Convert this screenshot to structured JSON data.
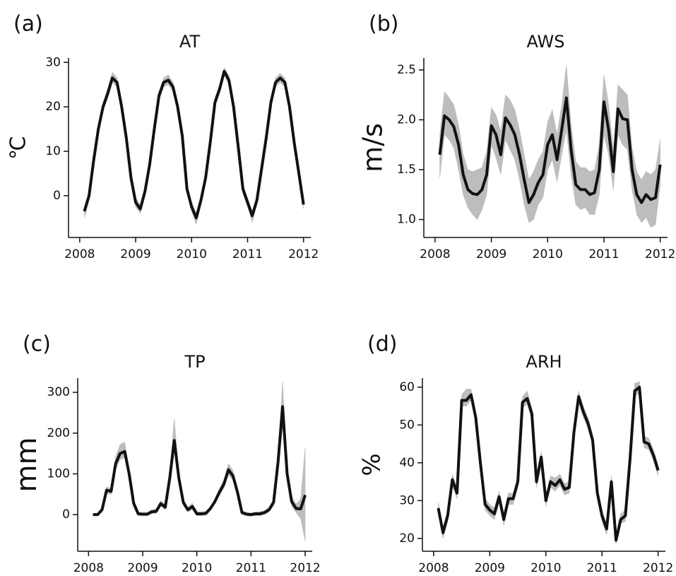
{
  "chart_data": [
    {
      "type": "line",
      "panel_label": "(a)",
      "title": "AT",
      "y_label": "℃",
      "x": [
        2008.083,
        2008.167,
        2008.25,
        2008.333,
        2008.417,
        2008.5,
        2008.583,
        2008.667,
        2008.75,
        2008.833,
        2008.917,
        2009,
        2009.083,
        2009.167,
        2009.25,
        2009.333,
        2009.417,
        2009.5,
        2009.583,
        2009.667,
        2009.75,
        2009.833,
        2009.917,
        2010,
        2010.083,
        2010.167,
        2010.25,
        2010.333,
        2010.417,
        2010.5,
        2010.583,
        2010.667,
        2010.75,
        2010.833,
        2010.917,
        2011,
        2011.083,
        2011.167,
        2011.25,
        2011.333,
        2011.417,
        2011.5,
        2011.583,
        2011.667,
        2011.75,
        2011.833,
        2011.917,
        2012
      ],
      "xlim": [
        2007.8,
        2012.13
      ],
      "xticks": [
        2008,
        2009,
        2010,
        2011,
        2012
      ],
      "ylim": [
        -9.4,
        31
      ],
      "yticks": [
        0,
        10,
        20,
        30
      ],
      "band_color": "#bdbdbd",
      "series": [
        {
          "color": "#111111",
          "values": [
            -3.5,
            0,
            8,
            15,
            20,
            23,
            26.5,
            25.5,
            20,
            13,
            4,
            -1.5,
            -3,
            1,
            7,
            15,
            22.5,
            25.5,
            26,
            24.5,
            20,
            13.5,
            1.5,
            -2.5,
            -5,
            -1,
            4,
            12,
            21,
            24,
            28,
            26,
            20,
            11,
            1.5,
            -1.5,
            -4.5,
            -1,
            6,
            13,
            21,
            25.5,
            26.5,
            25.5,
            20,
            12,
            5,
            -2
          ],
          "lower": [
            -5,
            -1,
            7,
            14,
            19,
            22,
            25.5,
            24.5,
            19,
            12,
            3,
            -2.5,
            -4,
            0,
            6,
            14,
            21.5,
            24.5,
            25,
            23.5,
            19,
            12.5,
            0.5,
            -3.5,
            -6.5,
            -2,
            3,
            11,
            20,
            23,
            27,
            25,
            19,
            10,
            0.5,
            -2.5,
            -6,
            -2,
            5,
            12,
            20,
            24.5,
            25.5,
            24.5,
            19,
            11,
            4,
            -3
          ],
          "upper": [
            -2.5,
            1,
            9,
            16,
            21,
            24,
            27.8,
            26.5,
            21,
            14,
            5,
            -0.5,
            -2,
            2,
            8,
            16,
            23.5,
            26.5,
            27.2,
            25.5,
            21,
            14.5,
            2.5,
            -1.5,
            -3.8,
            0,
            5,
            13,
            22,
            25,
            28.8,
            27,
            21,
            12,
            2.5,
            -0.5,
            -3.5,
            0,
            7,
            14,
            22,
            26.5,
            27.5,
            26.5,
            21,
            13,
            6,
            -1
          ]
        }
      ]
    },
    {
      "type": "line",
      "panel_label": "(b)",
      "title": "AWS",
      "y_label": "m/s",
      "x": [
        2008.083,
        2008.167,
        2008.25,
        2008.333,
        2008.417,
        2008.5,
        2008.583,
        2008.667,
        2008.75,
        2008.833,
        2008.917,
        2009,
        2009.083,
        2009.167,
        2009.25,
        2009.333,
        2009.417,
        2009.5,
        2009.583,
        2009.667,
        2009.75,
        2009.833,
        2009.917,
        2010,
        2010.083,
        2010.167,
        2010.25,
        2010.333,
        2010.417,
        2010.5,
        2010.583,
        2010.667,
        2010.75,
        2010.833,
        2010.917,
        2011,
        2011.083,
        2011.167,
        2011.25,
        2011.333,
        2011.417,
        2011.5,
        2011.583,
        2011.667,
        2011.75,
        2011.833,
        2011.917,
        2012
      ],
      "xlim": [
        2007.8,
        2012.13
      ],
      "xticks": [
        2008,
        2009,
        2010,
        2011,
        2012
      ],
      "ylim": [
        0.82,
        2.62
      ],
      "yticks": [
        {
          "value": 1,
          "label": "1.0"
        },
        1.5,
        {
          "value": 2,
          "label": "2.0"
        },
        2.5
      ],
      "band_color": "#bdbdbd",
      "series": [
        {
          "color": "#111111",
          "values": [
            1.65,
            2.04,
            2.0,
            1.93,
            1.75,
            1.45,
            1.3,
            1.26,
            1.25,
            1.3,
            1.45,
            1.94,
            1.85,
            1.65,
            2.02,
            1.95,
            1.85,
            1.65,
            1.4,
            1.17,
            1.25,
            1.37,
            1.45,
            1.75,
            1.85,
            1.6,
            1.9,
            2.22,
            1.7,
            1.35,
            1.3,
            1.3,
            1.25,
            1.27,
            1.5,
            2.18,
            1.9,
            1.48,
            2.11,
            2.01,
            2.0,
            1.5,
            1.25,
            1.17,
            1.25,
            1.2,
            1.22,
            1.55
          ],
          "lower": [
            1.42,
            1.85,
            1.8,
            1.72,
            1.5,
            1.25,
            1.12,
            1.05,
            1.0,
            1.1,
            1.25,
            1.75,
            1.62,
            1.45,
            1.8,
            1.7,
            1.6,
            1.4,
            1.15,
            0.97,
            1.0,
            1.15,
            1.22,
            1.5,
            1.6,
            1.38,
            1.65,
            1.9,
            1.45,
            1.15,
            1.1,
            1.12,
            1.05,
            1.05,
            1.25,
            1.85,
            1.65,
            1.3,
            1.85,
            1.75,
            1.7,
            1.3,
            1.05,
            0.97,
            1.02,
            0.92,
            0.95,
            1.35
          ],
          "upper": [
            1.85,
            2.28,
            2.22,
            2.15,
            1.95,
            1.65,
            1.5,
            1.48,
            1.5,
            1.52,
            1.68,
            2.12,
            2.05,
            1.88,
            2.25,
            2.2,
            2.1,
            1.9,
            1.65,
            1.4,
            1.48,
            1.6,
            1.68,
            1.98,
            2.1,
            1.85,
            2.15,
            2.55,
            1.95,
            1.58,
            1.52,
            1.52,
            1.48,
            1.5,
            1.75,
            2.45,
            2.15,
            1.7,
            2.35,
            2.3,
            2.25,
            1.72,
            1.48,
            1.4,
            1.48,
            1.45,
            1.5,
            1.8
          ]
        }
      ]
    },
    {
      "type": "line",
      "panel_label": "(c)",
      "title": "TP",
      "y_label": "mm",
      "x": [
        2008.083,
        2008.167,
        2008.25,
        2008.333,
        2008.417,
        2008.5,
        2008.583,
        2008.667,
        2008.75,
        2008.833,
        2008.917,
        2009,
        2009.083,
        2009.167,
        2009.25,
        2009.333,
        2009.417,
        2009.5,
        2009.583,
        2009.667,
        2009.75,
        2009.833,
        2009.917,
        2010,
        2010.083,
        2010.167,
        2010.25,
        2010.333,
        2010.417,
        2010.5,
        2010.583,
        2010.667,
        2010.75,
        2010.833,
        2010.917,
        2011,
        2011.083,
        2011.167,
        2011.25,
        2011.333,
        2011.417,
        2011.5,
        2011.583,
        2011.667,
        2011.75,
        2011.833,
        2011.917,
        2012
      ],
      "xlim": [
        2007.8,
        2012.13
      ],
      "xticks": [
        2008,
        2009,
        2010,
        2011,
        2012
      ],
      "ylim": [
        -90,
        335
      ],
      "yticks": [
        0,
        100,
        200,
        300
      ],
      "band_color": "#bdbdbd",
      "series": [
        {
          "color": "#111111",
          "values": [
            0,
            0,
            12,
            60,
            57,
            125,
            150,
            155,
            100,
            28,
            2,
            1,
            1,
            7,
            8,
            27,
            18,
            90,
            182,
            90,
            30,
            12,
            20,
            2,
            2,
            3,
            15,
            32,
            55,
            75,
            110,
            95,
            55,
            5,
            1,
            0,
            2,
            2,
            5,
            12,
            30,
            130,
            265,
            100,
            32,
            15,
            14,
            48
          ],
          "lower": [
            -3,
            -3,
            6,
            52,
            50,
            110,
            135,
            140,
            88,
            20,
            -2,
            -3,
            -3,
            2,
            3,
            20,
            12,
            78,
            155,
            78,
            22,
            6,
            12,
            -3,
            -3,
            -2,
            10,
            26,
            47,
            65,
            97,
            85,
            45,
            0,
            -3,
            -4,
            -3,
            -3,
            0,
            6,
            22,
            112,
            215,
            82,
            20,
            5,
            -10,
            -65
          ],
          "upper": [
            3,
            3,
            18,
            68,
            64,
            142,
            172,
            178,
            115,
            36,
            6,
            5,
            5,
            12,
            14,
            34,
            25,
            104,
            235,
            104,
            38,
            18,
            28,
            7,
            7,
            8,
            20,
            38,
            64,
            86,
            125,
            108,
            65,
            10,
            5,
            4,
            7,
            7,
            10,
            18,
            38,
            150,
            325,
            120,
            44,
            26,
            38,
            165
          ]
        }
      ]
    },
    {
      "type": "line",
      "panel_label": "(d)",
      "title": "ARH",
      "y_label": "%",
      "x": [
        2008.083,
        2008.167,
        2008.25,
        2008.333,
        2008.417,
        2008.5,
        2008.583,
        2008.667,
        2008.75,
        2008.833,
        2008.917,
        2009,
        2009.083,
        2009.167,
        2009.25,
        2009.333,
        2009.417,
        2009.5,
        2009.583,
        2009.667,
        2009.75,
        2009.833,
        2009.917,
        2010,
        2010.083,
        2010.167,
        2010.25,
        2010.333,
        2010.417,
        2010.5,
        2010.583,
        2010.667,
        2010.75,
        2010.833,
        2010.917,
        2011,
        2011.083,
        2011.167,
        2011.25,
        2011.333,
        2011.417,
        2011.5,
        2011.583,
        2011.667,
        2011.75,
        2011.833,
        2011.917,
        2012
      ],
      "xlim": [
        2007.8,
        2012.13
      ],
      "xticks": [
        2008,
        2009,
        2010,
        2011,
        2012
      ],
      "ylim": [
        16.6,
        62.4
      ],
      "yticks": [
        20,
        30,
        40,
        50,
        60
      ],
      "band_color": "#bdbdbd",
      "series": [
        {
          "color": "#111111",
          "values": [
            28,
            21.5,
            26,
            35.5,
            32,
            56.5,
            56.5,
            58,
            52,
            40,
            29,
            27.5,
            26.5,
            31,
            25,
            30.5,
            30.5,
            35,
            56,
            57,
            53,
            35,
            41.5,
            30,
            35,
            34,
            35.5,
            33,
            33.5,
            48,
            57.5,
            53.5,
            50.5,
            46,
            32,
            26,
            22.5,
            35,
            19.5,
            25,
            26,
            41,
            59,
            60,
            45.5,
            45,
            42,
            38
          ],
          "lower": [
            26.5,
            20,
            24.5,
            34,
            30.5,
            55,
            55,
            56.5,
            50.5,
            38.5,
            27.5,
            26,
            25,
            29.5,
            23.5,
            29,
            29,
            33.5,
            54.5,
            55.5,
            51.5,
            33.5,
            40,
            28.5,
            33.5,
            32.5,
            34,
            31.5,
            32,
            46.5,
            56,
            52,
            49,
            44.5,
            30.5,
            24.5,
            21,
            33.5,
            18.5,
            24,
            24.5,
            39.5,
            57.5,
            58.5,
            44,
            43.5,
            40.5,
            36.5
          ],
          "upper": [
            29.5,
            23,
            27.5,
            37,
            33.5,
            58,
            59.5,
            59.5,
            53.5,
            41.5,
            30.5,
            29,
            28,
            32.5,
            26.5,
            32,
            32,
            36.5,
            57.5,
            59,
            54.5,
            36.5,
            43,
            31.5,
            36.5,
            36,
            37,
            34.5,
            35,
            49.5,
            59,
            55,
            52,
            47.5,
            33.5,
            27.5,
            24,
            36.5,
            20.5,
            26.5,
            27.5,
            42.5,
            61,
            61.5,
            47,
            46.5,
            43.5,
            39.5
          ]
        }
      ]
    }
  ]
}
